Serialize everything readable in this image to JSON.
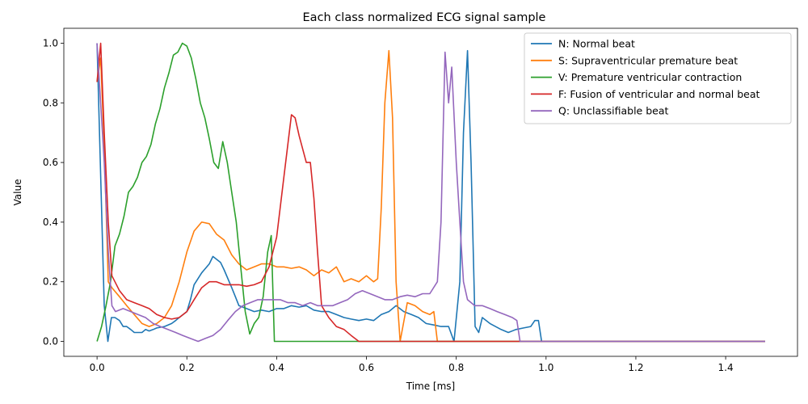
{
  "chart_data": {
    "type": "line",
    "title": "Each class normalized ECG signal sample",
    "xlabel": "Time [ms]",
    "ylabel": "Value",
    "xlim": [
      -0.074,
      1.56
    ],
    "ylim": [
      -0.05,
      1.05
    ],
    "xticks": [
      0.0,
      0.2,
      0.4,
      0.6,
      0.8,
      1.0,
      1.2,
      1.4
    ],
    "xtick_labels": [
      "0.0",
      "0.2",
      "0.4",
      "0.6",
      "0.8",
      "1.0",
      "1.2",
      "1.4"
    ],
    "yticks": [
      0.0,
      0.2,
      0.4,
      0.6,
      0.8,
      1.0
    ],
    "ytick_labels": [
      "0.0",
      "0.2",
      "0.4",
      "0.6",
      "0.8",
      "1.0"
    ],
    "grid": false,
    "legend_position": "top-right",
    "x_end": 1.488,
    "series": [
      {
        "name": "N: Normal beat",
        "color": "#1f77b4",
        "points": [
          [
            0.0,
            1.0
          ],
          [
            0.016,
            0.12
          ],
          [
            0.024,
            0.0
          ],
          [
            0.032,
            0.08
          ],
          [
            0.04,
            0.08
          ],
          [
            0.05,
            0.07
          ],
          [
            0.058,
            0.05
          ],
          [
            0.066,
            0.05
          ],
          [
            0.075,
            0.04
          ],
          [
            0.083,
            0.03
          ],
          [
            0.1,
            0.03
          ],
          [
            0.108,
            0.04
          ],
          [
            0.116,
            0.035
          ],
          [
            0.125,
            0.04
          ],
          [
            0.133,
            0.045
          ],
          [
            0.15,
            0.05
          ],
          [
            0.166,
            0.06
          ],
          [
            0.175,
            0.07
          ],
          [
            0.183,
            0.08
          ],
          [
            0.2,
            0.1
          ],
          [
            0.208,
            0.14
          ],
          [
            0.216,
            0.19
          ],
          [
            0.233,
            0.23
          ],
          [
            0.25,
            0.26
          ],
          [
            0.258,
            0.285
          ],
          [
            0.275,
            0.265
          ],
          [
            0.283,
            0.24
          ],
          [
            0.3,
            0.18
          ],
          [
            0.308,
            0.15
          ],
          [
            0.316,
            0.12
          ],
          [
            0.333,
            0.11
          ],
          [
            0.35,
            0.1
          ],
          [
            0.366,
            0.105
          ],
          [
            0.383,
            0.1
          ],
          [
            0.4,
            0.11
          ],
          [
            0.416,
            0.11
          ],
          [
            0.433,
            0.12
          ],
          [
            0.45,
            0.115
          ],
          [
            0.466,
            0.12
          ],
          [
            0.483,
            0.105
          ],
          [
            0.5,
            0.1
          ],
          [
            0.516,
            0.1
          ],
          [
            0.533,
            0.09
          ],
          [
            0.55,
            0.08
          ],
          [
            0.566,
            0.075
          ],
          [
            0.583,
            0.07
          ],
          [
            0.6,
            0.075
          ],
          [
            0.616,
            0.07
          ],
          [
            0.633,
            0.09
          ],
          [
            0.65,
            0.1
          ],
          [
            0.666,
            0.12
          ],
          [
            0.683,
            0.1
          ],
          [
            0.7,
            0.09
          ],
          [
            0.716,
            0.08
          ],
          [
            0.733,
            0.06
          ],
          [
            0.75,
            0.055
          ],
          [
            0.766,
            0.05
          ],
          [
            0.783,
            0.05
          ],
          [
            0.795,
            0.0
          ],
          [
            0.808,
            0.2
          ],
          [
            0.816,
            0.7
          ],
          [
            0.825,
            0.975
          ],
          [
            0.833,
            0.6
          ],
          [
            0.842,
            0.05
          ],
          [
            0.85,
            0.03
          ],
          [
            0.858,
            0.08
          ],
          [
            0.875,
            0.06
          ],
          [
            0.9,
            0.04
          ],
          [
            0.916,
            0.03
          ],
          [
            0.933,
            0.04
          ],
          [
            0.95,
            0.045
          ],
          [
            0.966,
            0.05
          ],
          [
            0.975,
            0.07
          ],
          [
            0.983,
            0.07
          ],
          [
            0.99,
            0.0
          ],
          [
            1.488,
            0.0
          ]
        ]
      },
      {
        "name": "S: Supraventricular premature beat",
        "color": "#ff7f0e",
        "points": [
          [
            0.0,
            0.87
          ],
          [
            0.008,
            0.95
          ],
          [
            0.016,
            0.65
          ],
          [
            0.025,
            0.2
          ],
          [
            0.033,
            0.18
          ],
          [
            0.05,
            0.15
          ],
          [
            0.066,
            0.12
          ],
          [
            0.083,
            0.09
          ],
          [
            0.1,
            0.06
          ],
          [
            0.116,
            0.05
          ],
          [
            0.133,
            0.06
          ],
          [
            0.15,
            0.08
          ],
          [
            0.166,
            0.12
          ],
          [
            0.183,
            0.2
          ],
          [
            0.2,
            0.3
          ],
          [
            0.216,
            0.37
          ],
          [
            0.233,
            0.4
          ],
          [
            0.25,
            0.395
          ],
          [
            0.266,
            0.36
          ],
          [
            0.283,
            0.34
          ],
          [
            0.3,
            0.29
          ],
          [
            0.316,
            0.26
          ],
          [
            0.333,
            0.24
          ],
          [
            0.35,
            0.25
          ],
          [
            0.366,
            0.26
          ],
          [
            0.383,
            0.26
          ],
          [
            0.4,
            0.25
          ],
          [
            0.416,
            0.25
          ],
          [
            0.433,
            0.245
          ],
          [
            0.45,
            0.25
          ],
          [
            0.466,
            0.24
          ],
          [
            0.483,
            0.22
          ],
          [
            0.5,
            0.24
          ],
          [
            0.516,
            0.23
          ],
          [
            0.533,
            0.25
          ],
          [
            0.55,
            0.2
          ],
          [
            0.566,
            0.21
          ],
          [
            0.583,
            0.2
          ],
          [
            0.6,
            0.22
          ],
          [
            0.616,
            0.2
          ],
          [
            0.625,
            0.21
          ],
          [
            0.633,
            0.45
          ],
          [
            0.641,
            0.8
          ],
          [
            0.65,
            0.975
          ],
          [
            0.658,
            0.75
          ],
          [
            0.666,
            0.2
          ],
          [
            0.675,
            0.0
          ],
          [
            0.691,
            0.13
          ],
          [
            0.708,
            0.12
          ],
          [
            0.725,
            0.1
          ],
          [
            0.741,
            0.09
          ],
          [
            0.75,
            0.1
          ],
          [
            0.758,
            0.0
          ],
          [
            1.488,
            0.0
          ]
        ]
      },
      {
        "name": "V: Premature ventricular contraction",
        "color": "#2ca02c",
        "points": [
          [
            0.0,
            0.0
          ],
          [
            0.01,
            0.05
          ],
          [
            0.02,
            0.12
          ],
          [
            0.03,
            0.2
          ],
          [
            0.04,
            0.32
          ],
          [
            0.05,
            0.36
          ],
          [
            0.06,
            0.42
          ],
          [
            0.07,
            0.5
          ],
          [
            0.08,
            0.52
          ],
          [
            0.09,
            0.55
          ],
          [
            0.1,
            0.6
          ],
          [
            0.11,
            0.62
          ],
          [
            0.12,
            0.66
          ],
          [
            0.13,
            0.73
          ],
          [
            0.14,
            0.78
          ],
          [
            0.15,
            0.85
          ],
          [
            0.16,
            0.9
          ],
          [
            0.17,
            0.96
          ],
          [
            0.18,
            0.97
          ],
          [
            0.19,
            1.0
          ],
          [
            0.2,
            0.99
          ],
          [
            0.21,
            0.95
          ],
          [
            0.22,
            0.88
          ],
          [
            0.23,
            0.8
          ],
          [
            0.24,
            0.75
          ],
          [
            0.25,
            0.68
          ],
          [
            0.26,
            0.6
          ],
          [
            0.27,
            0.58
          ],
          [
            0.28,
            0.67
          ],
          [
            0.29,
            0.6
          ],
          [
            0.3,
            0.5
          ],
          [
            0.31,
            0.4
          ],
          [
            0.32,
            0.25
          ],
          [
            0.33,
            0.1
          ],
          [
            0.34,
            0.025
          ],
          [
            0.35,
            0.06
          ],
          [
            0.36,
            0.08
          ],
          [
            0.37,
            0.15
          ],
          [
            0.38,
            0.3
          ],
          [
            0.388,
            0.355
          ],
          [
            0.395,
            0.0
          ],
          [
            1.488,
            0.0
          ]
        ]
      },
      {
        "name": "F: Fusion of ventricular and normal beat",
        "color": "#d62728",
        "points": [
          [
            0.0,
            0.87
          ],
          [
            0.008,
            1.0
          ],
          [
            0.016,
            0.7
          ],
          [
            0.025,
            0.4
          ],
          [
            0.033,
            0.22
          ],
          [
            0.05,
            0.17
          ],
          [
            0.066,
            0.14
          ],
          [
            0.083,
            0.13
          ],
          [
            0.1,
            0.12
          ],
          [
            0.116,
            0.11
          ],
          [
            0.133,
            0.09
          ],
          [
            0.15,
            0.08
          ],
          [
            0.166,
            0.075
          ],
          [
            0.183,
            0.08
          ],
          [
            0.2,
            0.1
          ],
          [
            0.216,
            0.14
          ],
          [
            0.233,
            0.18
          ],
          [
            0.25,
            0.2
          ],
          [
            0.266,
            0.2
          ],
          [
            0.283,
            0.19
          ],
          [
            0.3,
            0.19
          ],
          [
            0.316,
            0.19
          ],
          [
            0.333,
            0.185
          ],
          [
            0.35,
            0.19
          ],
          [
            0.366,
            0.2
          ],
          [
            0.383,
            0.25
          ],
          [
            0.4,
            0.35
          ],
          [
            0.416,
            0.55
          ],
          [
            0.433,
            0.76
          ],
          [
            0.441,
            0.75
          ],
          [
            0.45,
            0.69
          ],
          [
            0.466,
            0.6
          ],
          [
            0.475,
            0.6
          ],
          [
            0.483,
            0.48
          ],
          [
            0.491,
            0.3
          ],
          [
            0.5,
            0.12
          ],
          [
            0.516,
            0.08
          ],
          [
            0.533,
            0.05
          ],
          [
            0.55,
            0.04
          ],
          [
            0.566,
            0.02
          ],
          [
            0.583,
            0.0
          ],
          [
            1.488,
            0.0
          ]
        ]
      },
      {
        "name": "Q: Unclassifiable beat",
        "color": "#9467bd",
        "points": [
          [
            0.0,
            1.0
          ],
          [
            0.016,
            0.6
          ],
          [
            0.025,
            0.3
          ],
          [
            0.033,
            0.12
          ],
          [
            0.041,
            0.1
          ],
          [
            0.058,
            0.11
          ],
          [
            0.075,
            0.1
          ],
          [
            0.091,
            0.09
          ],
          [
            0.108,
            0.08
          ],
          [
            0.125,
            0.06
          ],
          [
            0.141,
            0.05
          ],
          [
            0.158,
            0.04
          ],
          [
            0.175,
            0.03
          ],
          [
            0.191,
            0.02
          ],
          [
            0.208,
            0.01
          ],
          [
            0.225,
            0.0
          ],
          [
            0.241,
            0.01
          ],
          [
            0.258,
            0.02
          ],
          [
            0.275,
            0.04
          ],
          [
            0.291,
            0.07
          ],
          [
            0.308,
            0.1
          ],
          [
            0.325,
            0.12
          ],
          [
            0.341,
            0.13
          ],
          [
            0.358,
            0.14
          ],
          [
            0.375,
            0.14
          ],
          [
            0.391,
            0.14
          ],
          [
            0.408,
            0.14
          ],
          [
            0.425,
            0.13
          ],
          [
            0.441,
            0.13
          ],
          [
            0.458,
            0.12
          ],
          [
            0.475,
            0.13
          ],
          [
            0.491,
            0.12
          ],
          [
            0.508,
            0.12
          ],
          [
            0.525,
            0.12
          ],
          [
            0.541,
            0.13
          ],
          [
            0.558,
            0.14
          ],
          [
            0.575,
            0.16
          ],
          [
            0.591,
            0.17
          ],
          [
            0.608,
            0.16
          ],
          [
            0.625,
            0.15
          ],
          [
            0.641,
            0.14
          ],
          [
            0.658,
            0.14
          ],
          [
            0.675,
            0.15
          ],
          [
            0.691,
            0.155
          ],
          [
            0.708,
            0.15
          ],
          [
            0.725,
            0.16
          ],
          [
            0.741,
            0.16
          ],
          [
            0.758,
            0.2
          ],
          [
            0.766,
            0.4
          ],
          [
            0.775,
            0.97
          ],
          [
            0.783,
            0.8
          ],
          [
            0.79,
            0.92
          ],
          [
            0.8,
            0.6
          ],
          [
            0.808,
            0.4
          ],
          [
            0.816,
            0.2
          ],
          [
            0.825,
            0.14
          ],
          [
            0.841,
            0.12
          ],
          [
            0.858,
            0.12
          ],
          [
            0.875,
            0.11
          ],
          [
            0.891,
            0.1
          ],
          [
            0.908,
            0.09
          ],
          [
            0.925,
            0.08
          ],
          [
            0.935,
            0.07
          ],
          [
            0.942,
            0.0
          ],
          [
            1.488,
            0.0
          ]
        ]
      }
    ]
  }
}
